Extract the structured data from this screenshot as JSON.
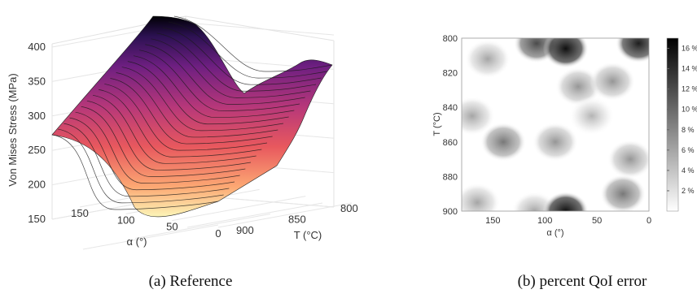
{
  "chart_data": [
    {
      "type": "surface",
      "zlabel": "Von Mises Stress (MPa)",
      "xlabel": "α (°)",
      "ylabel": "T (°C)",
      "x_ticks": [
        "150",
        "100",
        "50",
        "0"
      ],
      "y_ticks": [
        "800",
        "850",
        "900"
      ],
      "z_ticks": [
        "150",
        "200",
        "250",
        "300",
        "350",
        "400"
      ],
      "xlim": [
        0,
        180
      ],
      "ylim": [
        800,
        900
      ],
      "zlim": [
        150,
        410
      ],
      "grid": true,
      "colormap": "magma",
      "caption": "(a) Reference",
      "edge_along_alpha_at_T900": {
        "alpha": [
          180,
          150,
          120,
          100,
          80,
          60,
          40,
          20,
          0
        ],
        "stress": [
          250,
          240,
          200,
          165,
          158,
          163,
          172,
          180,
          185
        ]
      },
      "edge_along_T_at_alpha0": {
        "T": [
          900,
          880,
          860,
          840,
          820,
          800
        ],
        "stress": [
          185,
          220,
          270,
          315,
          350,
          358
        ]
      },
      "edge_along_T_at_alpha180": {
        "T": [
          900,
          870,
          840,
          820,
          800
        ],
        "stress": [
          250,
          300,
          350,
          385,
          405
        ]
      }
    },
    {
      "type": "heatmap",
      "xlabel": "α (°)",
      "ylabel": "T (°C)",
      "x_ticks": [
        "150",
        "100",
        "50",
        "0"
      ],
      "y_ticks": [
        "800",
        "820",
        "840",
        "860",
        "880",
        "900"
      ],
      "xlim": [
        0,
        180
      ],
      "ylim": [
        800,
        900
      ],
      "colorbar_label_ticks": [
        "2 %",
        "4 %",
        "6 %",
        "8 %",
        "10 %",
        "12 %",
        "14 %",
        "16 %"
      ],
      "colorbar_range": [
        0,
        17
      ],
      "colormap": "gray_r",
      "caption": "(b) percent QoI error",
      "blobs": [
        {
          "alpha": 140,
          "T": 860,
          "peak": 9
        },
        {
          "alpha": 108,
          "T": 803,
          "peak": 12
        },
        {
          "alpha": 80,
          "T": 806,
          "peak": 16
        },
        {
          "alpha": 10,
          "T": 803,
          "peak": 15
        },
        {
          "alpha": 155,
          "T": 812,
          "peak": 6
        },
        {
          "alpha": 170,
          "T": 845,
          "peak": 6
        },
        {
          "alpha": 90,
          "T": 860,
          "peak": 7
        },
        {
          "alpha": 68,
          "T": 828,
          "peak": 7
        },
        {
          "alpha": 35,
          "T": 825,
          "peak": 7
        },
        {
          "alpha": 55,
          "T": 845,
          "peak": 5
        },
        {
          "alpha": 18,
          "T": 870,
          "peak": 7
        },
        {
          "alpha": 25,
          "T": 890,
          "peak": 9
        },
        {
          "alpha": 165,
          "T": 895,
          "peak": 6
        },
        {
          "alpha": 110,
          "T": 900,
          "peak": 6
        },
        {
          "alpha": 80,
          "T": 900,
          "peak": 16
        }
      ]
    }
  ]
}
